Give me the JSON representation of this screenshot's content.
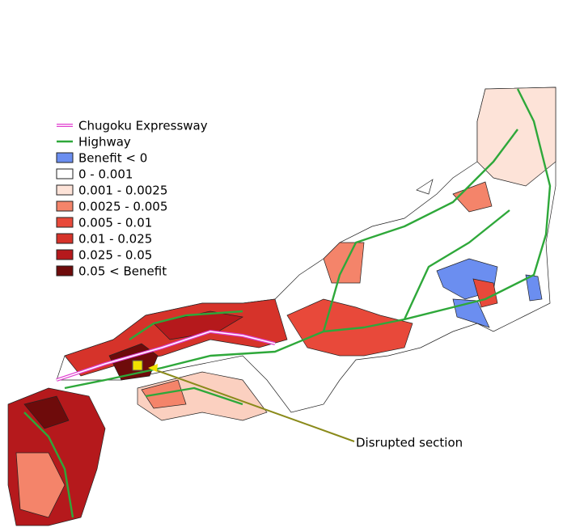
{
  "legend": {
    "items": [
      "Chugoku Expressway",
      "Highway",
      "Benefit < 0",
      "0 - 0.001",
      "0.001 - 0.0025",
      "0.0025 - 0.005",
      "0.005 - 0.01",
      "0.01 - 0.025",
      "0.025 - 0.05",
      "0.05 < Benefit"
    ]
  },
  "annotation": {
    "label": "Disrupted section"
  }
}
